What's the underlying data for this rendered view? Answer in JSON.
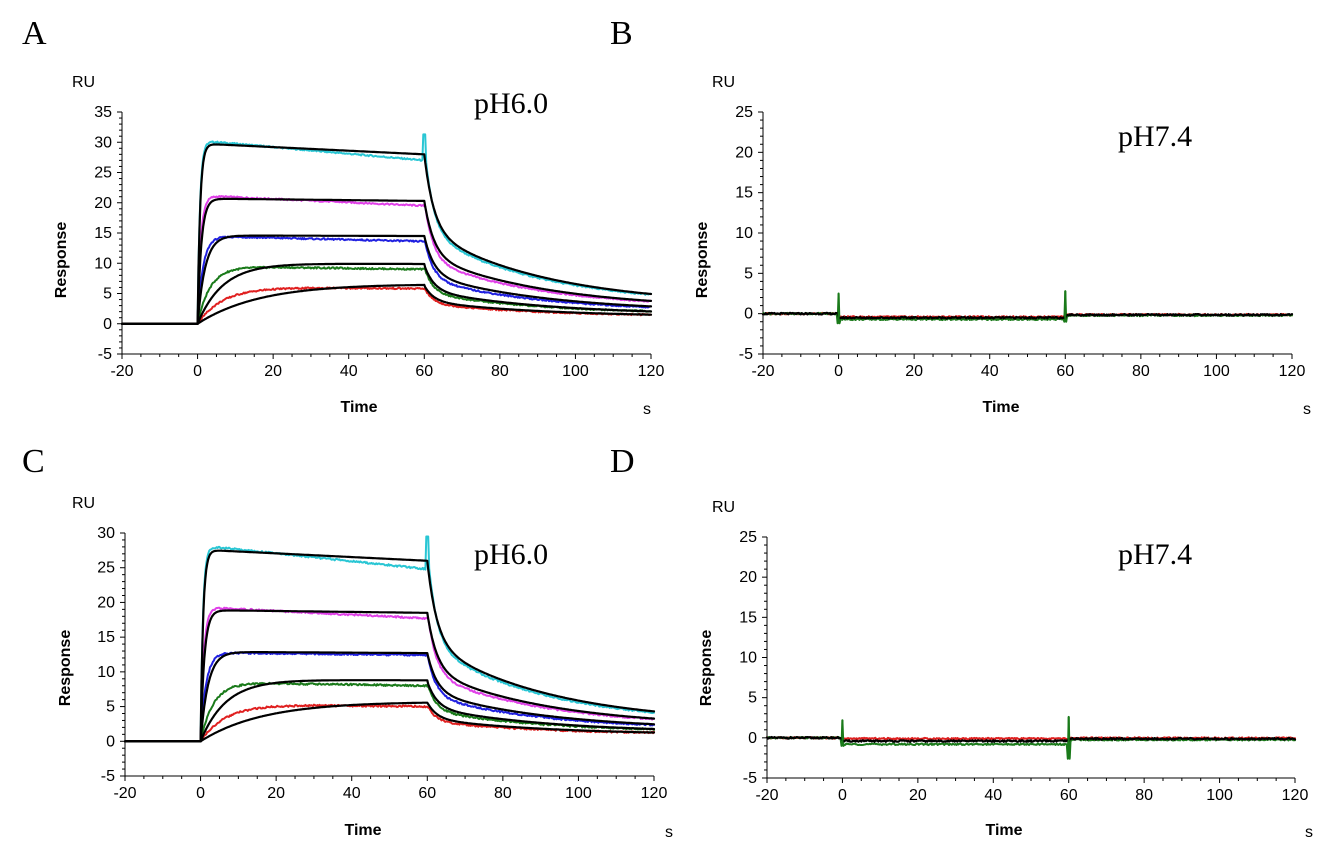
{
  "colors": {
    "cyan": "#29c6d4",
    "magenta": "#e040e8",
    "blue": "#2020e0",
    "green": "#1a7a1a",
    "red": "#e02020",
    "fit": "#000000"
  },
  "chart_data": [
    {
      "type": "line",
      "panel": "A",
      "annotation": "pH6.0",
      "xlabel": "Time",
      "ylabel": "Response",
      "xunit": "s",
      "yunit": "RU",
      "xlim": [
        -20,
        120
      ],
      "ylim": [
        -5,
        35
      ],
      "xticks": [
        -20,
        0,
        20,
        40,
        60,
        80,
        100,
        120
      ],
      "yticks": [
        -5,
        0,
        5,
        10,
        15,
        20,
        25,
        30,
        35
      ],
      "grid": false,
      "series": [
        {
          "color": "cyan",
          "plateau": 30.3,
          "kon": 1.6,
          "drift_end": 27.0,
          "off_spike": 29.8,
          "off_end": 3.2
        },
        {
          "color": "magenta",
          "plateau": 21.2,
          "kon": 1.2,
          "drift_end": 19.5,
          "off_spike": 20.5,
          "off_end": 2.6
        },
        {
          "color": "blue",
          "plateau": 14.5,
          "kon": 0.7,
          "drift_end": 13.6,
          "off_spike": 14.2,
          "off_end": 2.0
        },
        {
          "color": "green",
          "plateau": 9.5,
          "kon": 0.3,
          "drift_end": 9.0,
          "off_spike": 9.4,
          "off_end": 1.6
        },
        {
          "color": "red",
          "plateau": 6.1,
          "kon": 0.15,
          "drift_end": 5.8,
          "off_spike": 6.0,
          "off_end": 1.2
        }
      ],
      "fits": [
        {
          "plateau": 29.8,
          "kon": 1.5,
          "at60": 28.0,
          "off_end": 3.0
        },
        {
          "plateau": 20.7,
          "kon": 1.0,
          "at60": 20.3,
          "off_end": 2.4
        },
        {
          "plateau": 14.6,
          "kon": 0.5,
          "at60": 14.5,
          "off_end": 1.9
        },
        {
          "plateau": 10.0,
          "kon": 0.15,
          "at60": 9.7,
          "off_end": 1.4
        },
        {
          "plateau": 6.8,
          "kon": 0.06,
          "at60": 6.3,
          "off_end": 1.1
        }
      ]
    },
    {
      "type": "line",
      "panel": "B",
      "annotation": "pH7.4",
      "xlabel": "Time",
      "ylabel": "Response",
      "xunit": "s",
      "yunit": "RU",
      "xlim": [
        -20,
        120
      ],
      "ylim": [
        -5,
        25
      ],
      "xticks": [
        -20,
        0,
        20,
        40,
        60,
        80,
        100,
        120
      ],
      "yticks": [
        -5,
        0,
        5,
        10,
        15,
        20,
        25
      ],
      "grid": false,
      "baseline": [
        {
          "color": "red",
          "level": -0.4
        },
        {
          "color": "green",
          "level": -0.7
        },
        {
          "color": "fit",
          "level": -0.5
        }
      ],
      "spikes": [
        {
          "x": 0,
          "high": 2.5,
          "low": -1.2
        },
        {
          "x": 60,
          "high": 2.8,
          "low": -1.0
        }
      ]
    },
    {
      "type": "line",
      "panel": "C",
      "annotation": "pH6.0",
      "xlabel": "Time",
      "ylabel": "Response",
      "xunit": "s",
      "yunit": "RU",
      "xlim": [
        -20,
        120
      ],
      "ylim": [
        -5,
        30
      ],
      "xticks": [
        -20,
        0,
        20,
        40,
        60,
        80,
        100,
        120
      ],
      "yticks": [
        -5,
        0,
        5,
        10,
        15,
        20,
        25,
        30
      ],
      "grid": false,
      "series": [
        {
          "color": "cyan",
          "plateau": 28.2,
          "kon": 1.6,
          "drift_end": 24.8,
          "off_spike": 28.0,
          "off_end": 2.6
        },
        {
          "color": "magenta",
          "plateau": 19.3,
          "kon": 1.2,
          "drift_end": 17.7,
          "off_spike": 18.8,
          "off_end": 2.2
        },
        {
          "color": "blue",
          "plateau": 12.8,
          "kon": 0.7,
          "drift_end": 12.4,
          "off_spike": 12.6,
          "off_end": 1.7
        },
        {
          "color": "green",
          "plateau": 8.5,
          "kon": 0.3,
          "drift_end": 8.0,
          "off_spike": 8.4,
          "off_end": 1.3
        },
        {
          "color": "red",
          "plateau": 5.4,
          "kon": 0.15,
          "drift_end": 5.0,
          "off_spike": 5.2,
          "off_end": 1.0
        }
      ],
      "fits": [
        {
          "plateau": 27.6,
          "kon": 1.5,
          "at60": 26.0,
          "off_end": 2.5
        },
        {
          "plateau": 18.9,
          "kon": 1.0,
          "at60": 18.5,
          "off_end": 2.0
        },
        {
          "plateau": 12.9,
          "kon": 0.5,
          "at60": 12.7,
          "off_end": 1.6
        },
        {
          "plateau": 8.9,
          "kon": 0.15,
          "at60": 8.6,
          "off_end": 1.2
        },
        {
          "plateau": 5.8,
          "kon": 0.06,
          "at60": 5.6,
          "off_end": 0.9
        }
      ]
    },
    {
      "type": "line",
      "panel": "D",
      "annotation": "pH7.4",
      "xlabel": "Time",
      "ylabel": "Response",
      "xunit": "s",
      "yunit": "RU",
      "xlim": [
        -20,
        120
      ],
      "ylim": [
        -5,
        25
      ],
      "xticks": [
        -20,
        0,
        20,
        40,
        60,
        80,
        100,
        120
      ],
      "yticks": [
        -5,
        0,
        5,
        10,
        15,
        20,
        25
      ],
      "grid": false,
      "baseline": [
        {
          "color": "red",
          "level": -0.1
        },
        {
          "color": "green",
          "level": -0.8
        },
        {
          "color": "fit",
          "level": -0.4
        }
      ],
      "spikes": [
        {
          "x": 0,
          "high": 2.2,
          "low": -1.0
        },
        {
          "x": 60,
          "high": 2.6,
          "low": -2.6
        }
      ]
    }
  ]
}
